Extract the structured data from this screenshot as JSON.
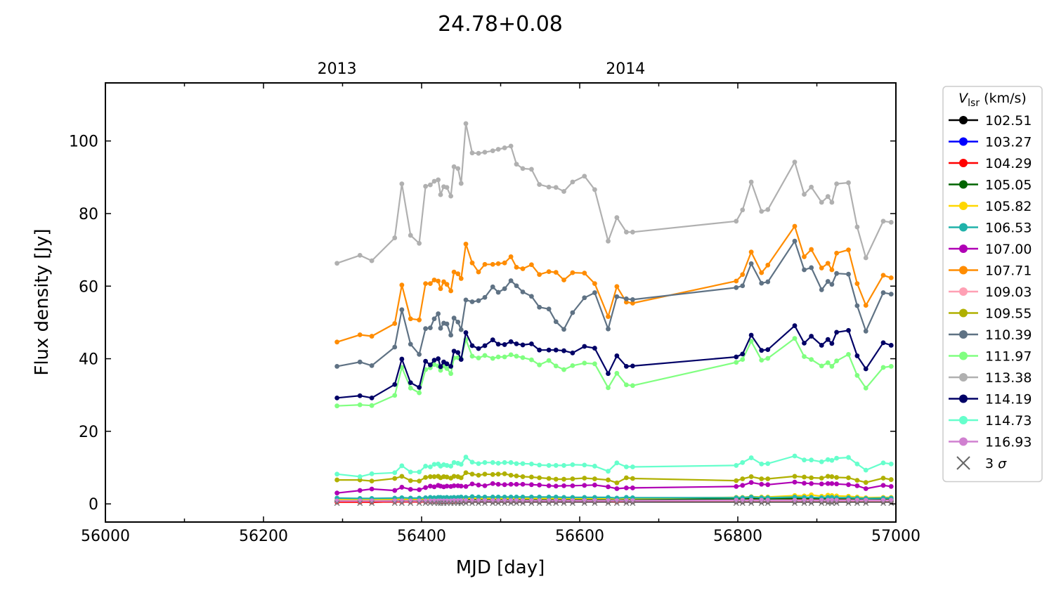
{
  "chart_data": {
    "type": "line",
    "title": "24.78+0.08",
    "xlabel": "MJD [day]",
    "ylabel": "Flux density [Jy]",
    "xlim": [
      56000,
      57000
    ],
    "ylim": [
      -5,
      116
    ],
    "xticks": [
      56000,
      56200,
      56400,
      56600,
      56800,
      57000
    ],
    "yticks": [
      0,
      20,
      40,
      60,
      80,
      100
    ],
    "top_axis": {
      "ticks": [
        {
          "label": "2013",
          "mjd": 56293
        },
        {
          "label": "2014",
          "mjd": 56658
        }
      ]
    },
    "legend": {
      "title_symbol": "V",
      "title_subscript": "lsr",
      "title_unit": " (km/s)",
      "placement": "right-outside",
      "sigma_label": "3 σ"
    },
    "x": [
      56293,
      56322,
      56337,
      56366,
      56375,
      56386,
      56397,
      56405,
      56411,
      56416,
      56421,
      56424,
      56428,
      56432,
      56437,
      56441,
      56446,
      56450,
      56456,
      56464,
      56472,
      56480,
      56490,
      56497,
      56505,
      56513,
      56520,
      56528,
      56539,
      56549,
      56561,
      56570,
      56580,
      56591,
      56606,
      56619,
      56636,
      56647,
      56659,
      56667,
      56798,
      56806,
      56817,
      56830,
      56838,
      56872,
      56884,
      56893,
      56906,
      56914,
      56919,
      56925,
      56940,
      56951,
      56962,
      56984,
      56994
    ],
    "series": [
      {
        "name": "102.51",
        "color": "#000000",
        "values": [
          0.6,
          0.6,
          0.5,
          0.6,
          0.6,
          0.6,
          0.6,
          0.6,
          0.6,
          0.6,
          0.6,
          0.6,
          0.6,
          0.6,
          0.6,
          0.6,
          0.6,
          0.6,
          0.6,
          0.6,
          0.6,
          0.6,
          0.6,
          0.6,
          0.6,
          0.6,
          0.6,
          0.6,
          0.6,
          0.6,
          0.6,
          0.6,
          0.6,
          0.6,
          0.6,
          0.6,
          0.6,
          0.6,
          0.6,
          0.6,
          0.6,
          0.6,
          0.6,
          0.6,
          0.6,
          0.6,
          0.6,
          0.6,
          0.6,
          0.6,
          0.6,
          0.6,
          0.6,
          0.6,
          0.6,
          0.6,
          0.6
        ]
      },
      {
        "name": "103.27",
        "color": "#0000ff",
        "values": [
          0.8,
          0.8,
          0.7,
          0.8,
          0.8,
          0.8,
          0.8,
          0.8,
          0.8,
          0.8,
          0.8,
          0.8,
          0.8,
          0.8,
          0.8,
          0.8,
          0.8,
          0.8,
          0.8,
          0.8,
          0.8,
          0.8,
          0.8,
          0.8,
          0.8,
          0.8,
          0.8,
          0.8,
          0.8,
          0.8,
          0.8,
          0.8,
          0.8,
          0.8,
          0.8,
          0.8,
          0.8,
          0.8,
          0.8,
          0.8,
          0.9,
          0.9,
          0.9,
          0.9,
          0.9,
          0.9,
          0.9,
          0.9,
          0.9,
          0.9,
          0.9,
          0.9,
          0.9,
          0.9,
          0.9,
          0.9,
          0.9
        ]
      },
      {
        "name": "104.29",
        "color": "#ff0000",
        "values": [
          0.5,
          0.5,
          0.5,
          0.6,
          0.6,
          0.6,
          0.6,
          0.7,
          0.7,
          0.7,
          0.7,
          0.7,
          0.7,
          0.7,
          0.7,
          0.7,
          0.8,
          0.8,
          0.8,
          0.8,
          0.8,
          0.8,
          0.8,
          0.8,
          0.8,
          0.8,
          0.8,
          0.8,
          0.8,
          0.8,
          0.8,
          0.8,
          0.8,
          0.8,
          0.8,
          0.8,
          0.8,
          0.7,
          0.8,
          0.8,
          1.0,
          1.0,
          1.1,
          1.0,
          1.0,
          1.1,
          1.1,
          1.1,
          1.1,
          1.1,
          1.1,
          1.1,
          1.1,
          1.0,
          0.9,
          1.0,
          1.0
        ]
      },
      {
        "name": "105.05",
        "color": "#006400",
        "values": [
          1.0,
          1.0,
          1.0,
          1.0,
          1.0,
          1.0,
          1.0,
          1.1,
          1.1,
          1.1,
          1.1,
          1.1,
          1.1,
          1.1,
          1.1,
          1.1,
          1.2,
          1.2,
          1.2,
          1.3,
          1.2,
          1.2,
          1.2,
          1.2,
          1.2,
          1.2,
          1.2,
          1.2,
          1.2,
          1.2,
          1.2,
          1.2,
          1.2,
          1.2,
          1.2,
          1.2,
          1.2,
          1.1,
          1.2,
          1.2,
          1.4,
          1.4,
          1.5,
          1.4,
          1.4,
          1.5,
          1.5,
          1.5,
          1.4,
          1.5,
          1.5,
          1.5,
          1.5,
          1.4,
          1.3,
          1.4,
          1.4
        ]
      },
      {
        "name": "105.82",
        "color": "#ffd700",
        "values": [
          1.2,
          1.2,
          1.2,
          1.3,
          1.3,
          1.3,
          1.3,
          1.4,
          1.4,
          1.4,
          1.4,
          1.4,
          1.4,
          1.4,
          1.4,
          1.4,
          1.5,
          1.5,
          1.5,
          1.6,
          1.5,
          1.5,
          1.5,
          1.5,
          1.5,
          1.5,
          1.5,
          1.5,
          1.5,
          1.5,
          1.5,
          1.5,
          1.5,
          1.5,
          1.5,
          1.5,
          1.5,
          1.4,
          1.5,
          1.5,
          1.8,
          1.8,
          2.0,
          1.9,
          1.9,
          2.3,
          2.2,
          2.5,
          2.1,
          2.4,
          2.3,
          2.2,
          2.1,
          1.9,
          1.7,
          1.8,
          1.8
        ]
      },
      {
        "name": "106.53",
        "color": "#20b2aa",
        "values": [
          1.6,
          1.5,
          1.5,
          1.6,
          1.7,
          1.6,
          1.6,
          1.7,
          1.8,
          1.7,
          1.8,
          1.8,
          1.7,
          1.8,
          1.7,
          1.8,
          1.8,
          1.9,
          1.8,
          2.0,
          1.9,
          1.9,
          1.9,
          1.9,
          1.9,
          1.9,
          1.9,
          1.9,
          1.9,
          1.9,
          1.9,
          1.9,
          1.8,
          1.8,
          1.8,
          1.8,
          1.8,
          1.6,
          1.8,
          1.7,
          1.7,
          1.7,
          1.9,
          1.7,
          1.7,
          1.9,
          1.8,
          1.8,
          1.7,
          1.8,
          1.8,
          1.7,
          1.7,
          1.6,
          1.5,
          1.6,
          1.6
        ]
      },
      {
        "name": "107.00",
        "color": "#b000b5",
        "values": [
          3.0,
          3.7,
          4.1,
          3.7,
          4.6,
          4.0,
          3.9,
          4.5,
          4.9,
          4.7,
          5.1,
          4.9,
          4.7,
          4.9,
          4.8,
          5.0,
          5.0,
          4.9,
          4.8,
          5.5,
          5.2,
          5.0,
          5.6,
          5.4,
          5.3,
          5.4,
          5.4,
          5.4,
          5.3,
          5.2,
          5.0,
          4.9,
          5.0,
          5.0,
          5.1,
          5.2,
          4.7,
          4.2,
          4.4,
          4.4,
          4.8,
          5.1,
          5.9,
          5.4,
          5.3,
          6.0,
          5.7,
          5.6,
          5.5,
          5.6,
          5.6,
          5.5,
          5.3,
          5.0,
          4.2,
          5.1,
          4.8
        ]
      },
      {
        "name": "107.71",
        "color": "#ff8c00",
        "values": [
          44.6,
          46.6,
          46.2,
          49.7,
          60.3,
          51.0,
          50.7,
          60.7,
          60.7,
          61.7,
          61.4,
          59.3,
          61.2,
          60.5,
          58.7,
          63.9,
          63.4,
          62.1,
          71.6,
          66.4,
          63.9,
          66.0,
          66.0,
          66.2,
          66.4,
          68.1,
          65.2,
          64.8,
          65.9,
          63.2,
          64.0,
          63.8,
          61.7,
          63.7,
          63.6,
          60.7,
          51.6,
          59.9,
          55.6,
          55.3,
          61.4,
          63.2,
          69.4,
          63.7,
          65.8,
          76.5,
          68.1,
          70.1,
          65.0,
          66.3,
          64.5,
          69.1,
          70.0,
          60.7,
          54.7,
          63.0,
          62.3
        ]
      },
      {
        "name": "109.03",
        "color": "#ffa0b4",
        "values": [
          0.8,
          0.8,
          0.8,
          0.8,
          0.8,
          0.8,
          0.8,
          0.8,
          0.8,
          0.8,
          0.8,
          0.8,
          0.8,
          0.8,
          0.8,
          0.8,
          0.8,
          0.8,
          0.8,
          0.8,
          0.8,
          0.8,
          0.8,
          0.8,
          0.8,
          0.8,
          0.8,
          0.8,
          0.8,
          0.8,
          0.8,
          0.8,
          0.8,
          0.8,
          0.8,
          0.8,
          0.8,
          0.8,
          0.8,
          0.8,
          0.8,
          0.8,
          0.8,
          0.8,
          0.8,
          0.8,
          0.8,
          0.8,
          0.8,
          0.8,
          0.8,
          0.8,
          0.8,
          0.8,
          0.8,
          0.8,
          0.8
        ]
      },
      {
        "name": "109.55",
        "color": "#b0b000",
        "values": [
          6.6,
          6.6,
          6.3,
          7.0,
          7.6,
          6.4,
          6.3,
          7.3,
          7.5,
          7.5,
          7.6,
          7.2,
          7.5,
          7.4,
          7.1,
          7.6,
          7.5,
          7.2,
          8.6,
          8.2,
          7.9,
          8.2,
          8.1,
          8.2,
          8.3,
          7.9,
          7.7,
          7.5,
          7.4,
          7.2,
          7.0,
          6.8,
          6.8,
          6.9,
          7.1,
          6.9,
          6.6,
          5.8,
          7.2,
          7.0,
          6.4,
          6.9,
          7.5,
          6.9,
          6.9,
          7.6,
          7.4,
          7.2,
          7.1,
          7.6,
          7.5,
          7.3,
          7.2,
          6.5,
          5.9,
          7.1,
          6.7
        ]
      },
      {
        "name": "110.39",
        "color": "#5f7284",
        "values": [
          37.9,
          39.1,
          38.1,
          43.2,
          53.5,
          44.0,
          41.2,
          48.3,
          48.5,
          51.0,
          52.4,
          48.4,
          49.8,
          49.6,
          46.5,
          51.2,
          50.1,
          48.0,
          56.2,
          55.7,
          56.0,
          56.9,
          59.8,
          58.3,
          59.3,
          61.5,
          60.1,
          58.4,
          57.2,
          54.2,
          53.7,
          50.2,
          48.1,
          52.7,
          56.8,
          58.2,
          48.2,
          57.1,
          56.5,
          56.3,
          59.6,
          60.1,
          66.2,
          60.8,
          61.2,
          72.4,
          64.5,
          65.1,
          59.0,
          61.3,
          60.5,
          63.5,
          63.3,
          54.6,
          47.6,
          58.2,
          57.8
        ]
      },
      {
        "name": "111.97",
        "color": "#80ff80",
        "values": [
          27.0,
          27.3,
          27.1,
          29.9,
          37.6,
          31.9,
          30.6,
          37.0,
          37.5,
          38.4,
          38.0,
          36.8,
          38.0,
          37.3,
          35.9,
          40.2,
          40.3,
          40.0,
          45.3,
          40.7,
          40.2,
          40.9,
          40.1,
          40.5,
          40.5,
          41.1,
          40.7,
          40.3,
          39.7,
          38.3,
          39.5,
          38.0,
          37.0,
          38.1,
          38.8,
          38.6,
          32.0,
          36.0,
          32.8,
          32.6,
          39.0,
          39.8,
          44.8,
          39.6,
          40.1,
          45.6,
          40.6,
          39.8,
          38.0,
          38.9,
          37.9,
          39.4,
          41.2,
          35.4,
          31.9,
          37.6,
          37.9
        ]
      },
      {
        "name": "113.38",
        "color": "#b0b0b0",
        "values": [
          66.3,
          68.5,
          67.0,
          73.3,
          88.2,
          74.0,
          71.8,
          87.5,
          87.9,
          88.9,
          89.3,
          85.2,
          87.4,
          87.2,
          84.8,
          92.9,
          92.4,
          88.3,
          104.8,
          96.7,
          96.6,
          96.9,
          97.3,
          97.7,
          98.1,
          98.6,
          93.6,
          92.4,
          92.2,
          88.0,
          87.3,
          87.2,
          86.1,
          88.7,
          90.3,
          86.6,
          72.4,
          78.9,
          74.9,
          74.9,
          77.9,
          81.0,
          88.7,
          80.6,
          81.1,
          94.2,
          85.3,
          87.3,
          83.1,
          84.7,
          83.1,
          88.2,
          88.5,
          76.3,
          67.8,
          77.9,
          77.6
        ]
      },
      {
        "name": "114.19",
        "color": "#000066",
        "values": [
          29.2,
          29.8,
          29.2,
          32.9,
          39.9,
          33.4,
          32.1,
          39.3,
          38.3,
          39.6,
          40.0,
          37.8,
          39.1,
          38.6,
          37.9,
          42.1,
          41.7,
          39.8,
          47.2,
          43.6,
          42.8,
          43.6,
          45.2,
          44.0,
          43.9,
          44.7,
          44.1,
          43.8,
          44.1,
          42.4,
          42.4,
          42.4,
          42.2,
          41.6,
          43.4,
          42.9,
          35.9,
          40.8,
          37.9,
          38.0,
          40.5,
          41.3,
          46.5,
          42.3,
          42.5,
          49.1,
          44.3,
          46.2,
          43.7,
          45.3,
          44.2,
          47.3,
          47.8,
          40.8,
          37.2,
          44.4,
          43.7
        ]
      },
      {
        "name": "114.73",
        "color": "#66ffcc",
        "values": [
          8.2,
          7.5,
          8.3,
          8.6,
          10.5,
          8.8,
          8.8,
          10.4,
          10.2,
          10.9,
          11.0,
          10.4,
          10.8,
          10.6,
          10.4,
          11.4,
          11.2,
          10.9,
          12.9,
          11.5,
          11.1,
          11.4,
          11.4,
          11.2,
          11.4,
          11.4,
          11.1,
          11.1,
          11.0,
          10.7,
          10.6,
          10.6,
          10.6,
          10.8,
          10.7,
          10.4,
          9.0,
          11.3,
          10.2,
          10.2,
          10.6,
          11.4,
          12.7,
          11.0,
          11.1,
          13.2,
          12.1,
          12.1,
          11.6,
          12.2,
          12.0,
          12.6,
          12.8,
          11.0,
          9.3,
          11.3,
          11.0
        ]
      },
      {
        "name": "116.93",
        "color": "#d080d0",
        "values": [
          0.8,
          0.8,
          0.8,
          0.8,
          0.8,
          0.8,
          0.8,
          0.8,
          0.8,
          0.8,
          0.8,
          0.8,
          0.8,
          0.8,
          0.8,
          0.9,
          0.9,
          0.9,
          0.9,
          0.9,
          0.9,
          0.9,
          0.9,
          0.9,
          0.9,
          0.9,
          0.9,
          0.9,
          0.9,
          0.9,
          0.9,
          0.9,
          0.9,
          0.9,
          0.9,
          0.9,
          0.9,
          0.9,
          0.9,
          0.9,
          1.0,
          1.0,
          1.0,
          1.0,
          1.0,
          1.0,
          1.0,
          1.0,
          1.0,
          1.0,
          1.0,
          1.0,
          1.0,
          1.0,
          1.0,
          1.0,
          1.0
        ]
      }
    ],
    "sigma_points": {
      "x": [
        56293,
        56322,
        56337,
        56366,
        56375,
        56386,
        56397,
        56405,
        56411,
        56416,
        56421,
        56424,
        56428,
        56432,
        56437,
        56441,
        56446,
        56450,
        56456,
        56464,
        56472,
        56480,
        56490,
        56497,
        56505,
        56513,
        56520,
        56528,
        56539,
        56549,
        56561,
        56570,
        56580,
        56591,
        56606,
        56619,
        56636,
        56647,
        56659,
        56667,
        56798,
        56806,
        56817,
        56830,
        56838,
        56872,
        56884,
        56893,
        56906,
        56914,
        56919,
        56925,
        56940,
        56951,
        56962,
        56984,
        56994
      ],
      "y": 0.2,
      "color": "#777777"
    }
  }
}
